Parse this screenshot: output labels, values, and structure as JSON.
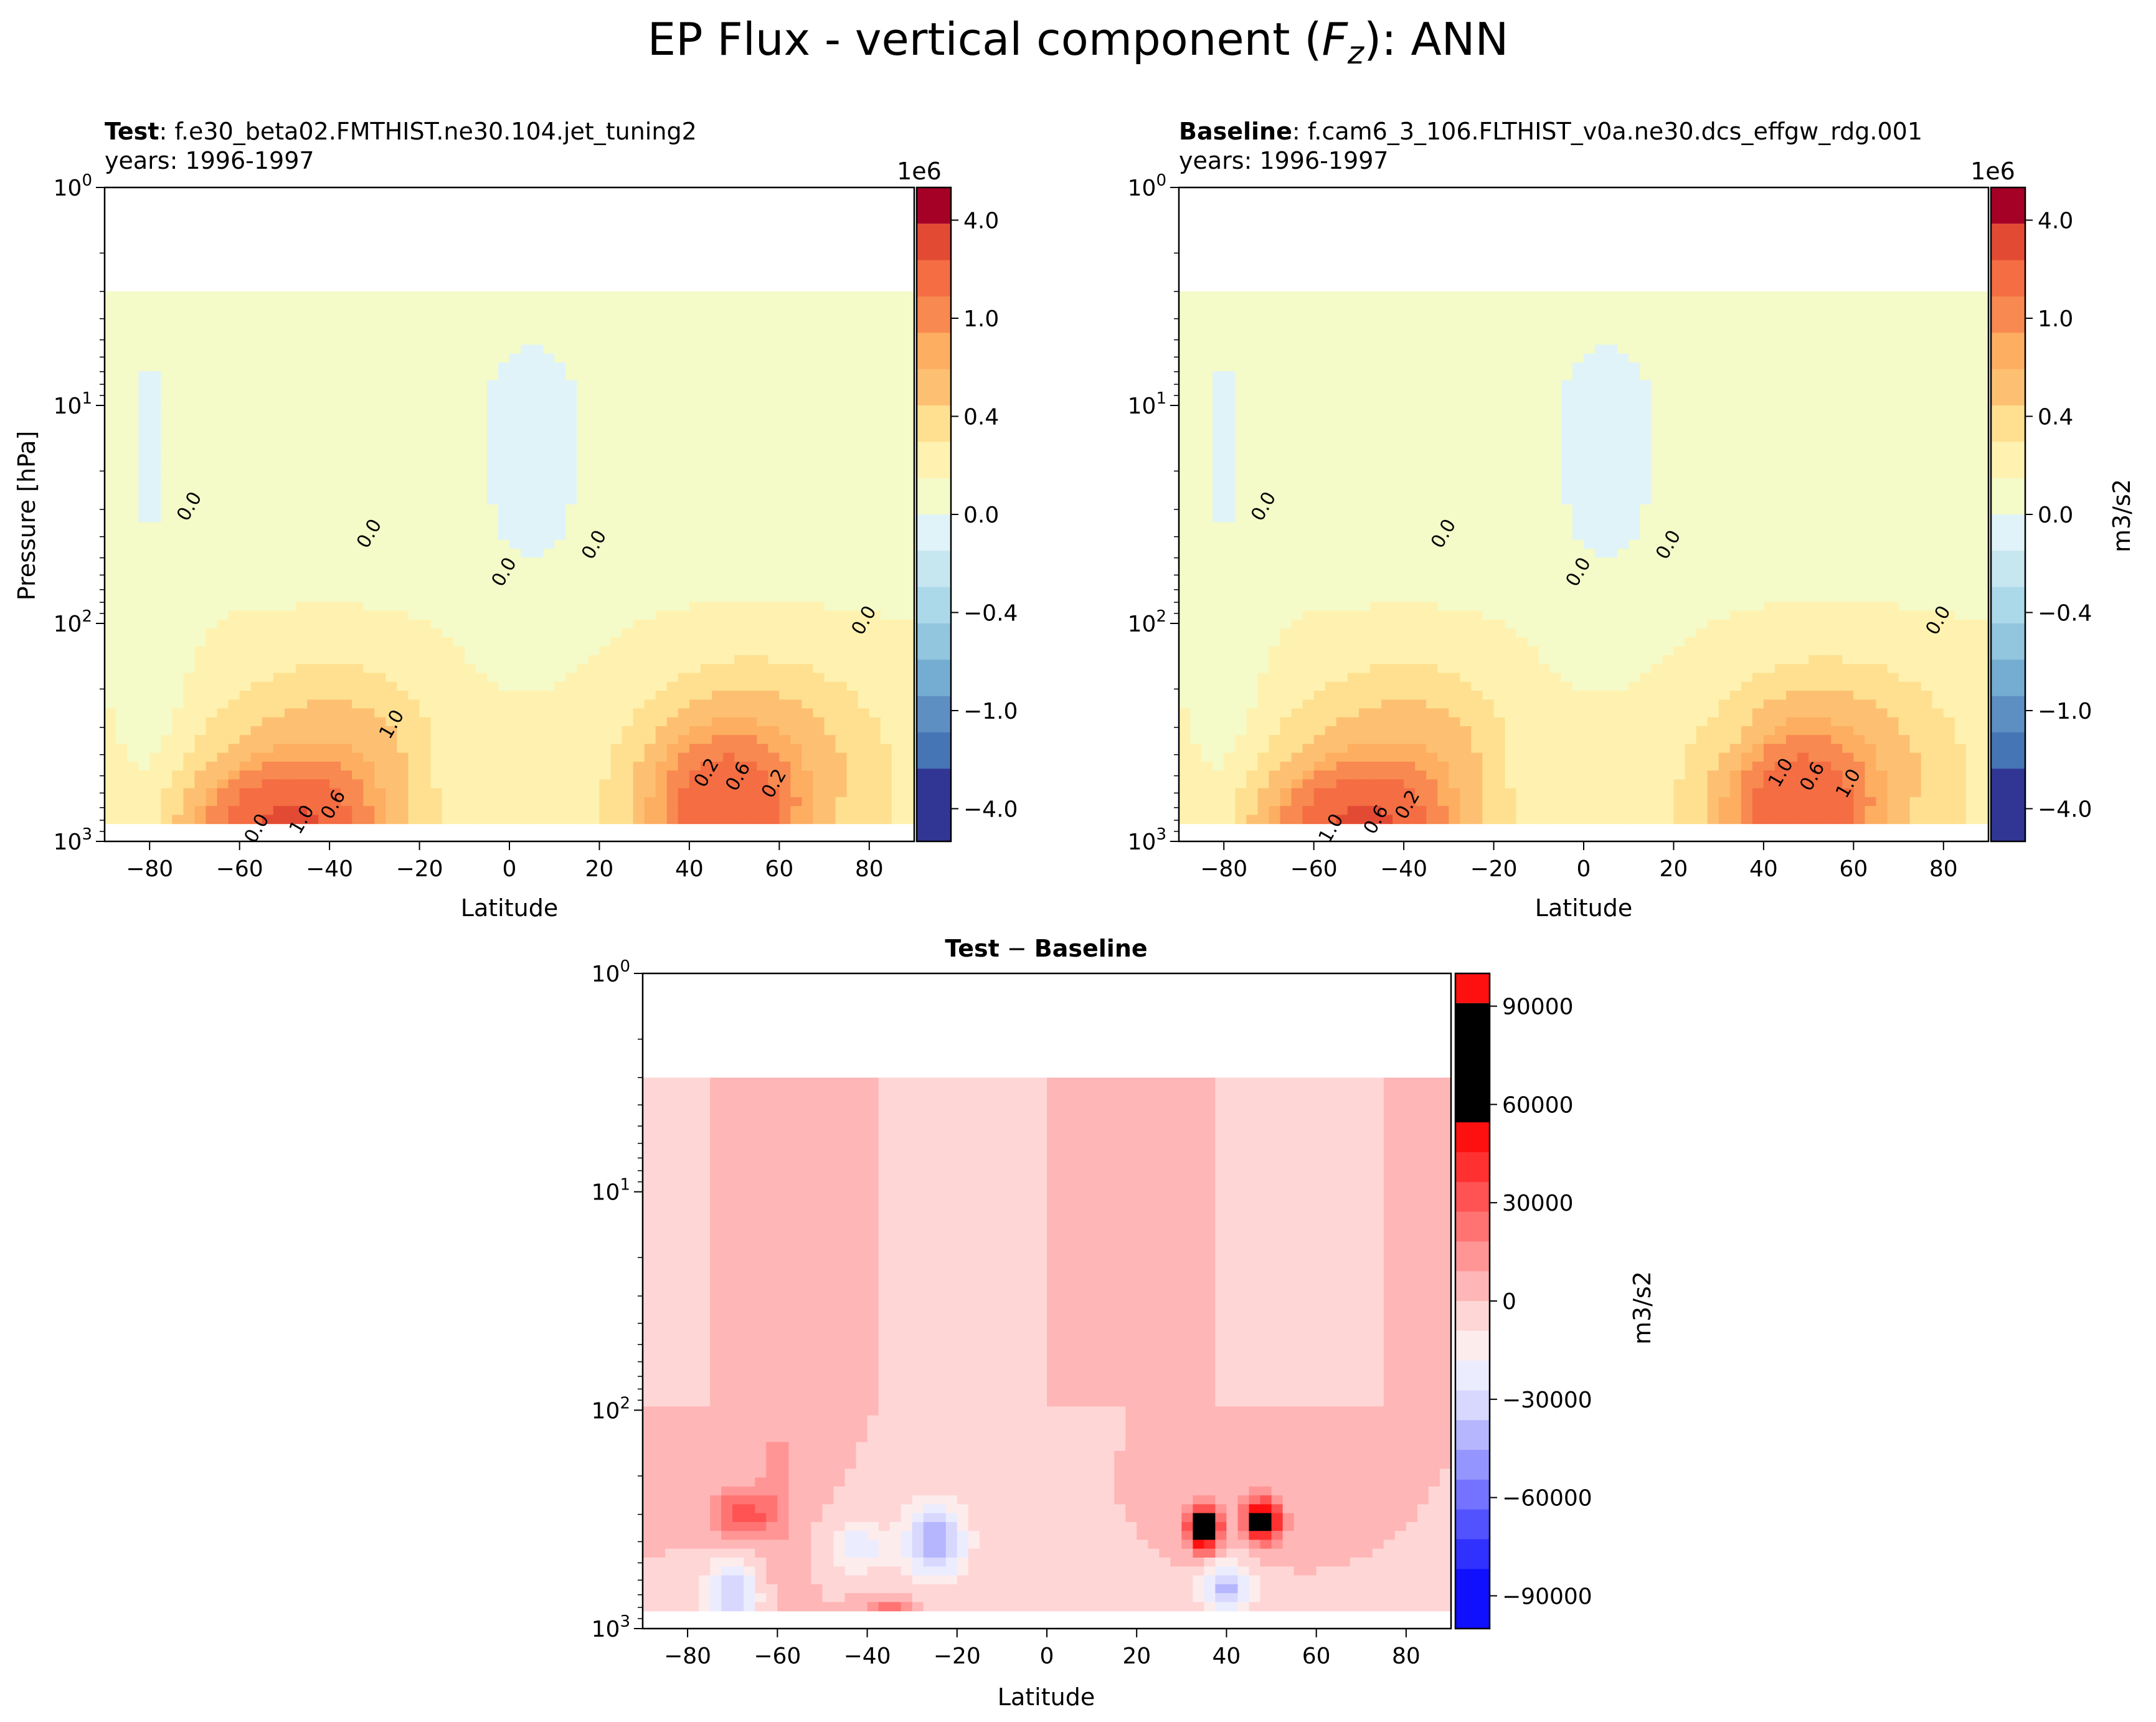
{
  "figure": {
    "title": "EP Flux - vertical component (F_z): ANN",
    "title_prefix": "EP Flux - vertical component (",
    "title_var": "F",
    "title_sub": "z",
    "title_suffix": "): ANN"
  },
  "colors": {
    "rdylbu": [
      "#313695",
      "#4575b4",
      "#5d8fc2",
      "#74add1",
      "#92c5de",
      "#abd9e9",
      "#c6e6f0",
      "#e0f3f8",
      "#f4fac8",
      "#fff2b0",
      "#fee090",
      "#fdc072",
      "#fdae61",
      "#f88950",
      "#f46d43",
      "#e34a33",
      "#d73027",
      "#b81529",
      "#a50026"
    ],
    "bwr": [
      "#1010ff",
      "#3030ff",
      "#5252ff",
      "#7373ff",
      "#9595ff",
      "#b6b6ff",
      "#d8d8ff",
      "#ececff",
      "#fdecec",
      "#ffd6d6",
      "#ffb6b6",
      "#ff9595",
      "#ff7373",
      "#ff5252",
      "#ff3030",
      "#ff1010"
    ],
    "missing": "#ffffff"
  },
  "chart_data": [
    {
      "type": "heatmap",
      "id": "test",
      "title_bold": "Test",
      "title_rest": ": f.e30_beta02.FMTHIST.ne30.104.jet_tuning2",
      "subtitle": "years: 1996-1997",
      "xlabel": "Latitude",
      "ylabel": "Pressure [hPa]",
      "x_ticks": [
        "−80",
        "−60",
        "−40",
        "−20",
        "0",
        "20",
        "40",
        "60",
        "80"
      ],
      "y_ticks": [
        "10^0",
        "10^1",
        "10^2",
        "10^3"
      ],
      "xlim": [
        -90,
        90
      ],
      "ylim_hpa": [
        1000,
        1
      ],
      "y_scale": "log",
      "colorbar": {
        "label": "",
        "offset_text": "1e6",
        "ticks": [
          "4.0",
          "1.0",
          "0.4",
          "0.0",
          "−0.4",
          "−1.0",
          "−4.0"
        ],
        "levels": [
          -4.0,
          -2.0,
          -1.0,
          -0.6,
          -0.4,
          -0.2,
          -0.1,
          -0.05,
          0,
          0.05,
          0.1,
          0.2,
          0.4,
          0.6,
          1.0,
          2.0,
          4.0
        ]
      },
      "contour_labels": [
        "0.0",
        "0.0",
        "0.0",
        "0.0",
        "0.0",
        "0.0",
        "1.0",
        "0.6",
        "0.2",
        "0.6",
        "0.2",
        "1.0"
      ],
      "features": [
        {
          "name": "SH midlatitude upward flux maximum",
          "lat": -50,
          "p_hpa": 900,
          "value": 2.0
        },
        {
          "name": "NH midlatitude upward flux maximum",
          "lat": 48,
          "p_hpa": 700,
          "value": 1.5
        },
        {
          "name": "tropical near-zero region",
          "lat": 0,
          "p_hpa": 50,
          "value": 0.0
        }
      ]
    },
    {
      "type": "heatmap",
      "id": "baseline",
      "title_bold": "Baseline",
      "title_rest": ": f.cam6_3_106.FLTHIST_v0a.ne30.dcs_effgw_rdg.001",
      "subtitle": "years: 1996-1997",
      "xlabel": "Latitude",
      "ylabel": "",
      "x_ticks": [
        "−80",
        "−60",
        "−40",
        "−20",
        "0",
        "20",
        "40",
        "60",
        "80"
      ],
      "y_ticks": [
        "10^0",
        "10^1",
        "10^2",
        "10^3"
      ],
      "xlim": [
        -90,
        90
      ],
      "ylim_hpa": [
        1000,
        1
      ],
      "y_scale": "log",
      "colorbar": {
        "label": "m3/s2",
        "offset_text": "1e6",
        "ticks": [
          "4.0",
          "1.0",
          "0.4",
          "0.0",
          "−0.4",
          "−1.0",
          "−4.0"
        ],
        "levels": [
          -4.0,
          -2.0,
          -1.0,
          -0.6,
          -0.4,
          -0.2,
          -0.1,
          -0.05,
          0,
          0.05,
          0.1,
          0.2,
          0.4,
          0.6,
          1.0,
          2.0,
          4.0
        ]
      },
      "contour_labels": [
        "0.0",
        "0.0",
        "0.0",
        "0.0",
        "0.0",
        "1.0",
        "0.6",
        "0.2",
        "1.0",
        "0.6",
        "1.0"
      ],
      "features": [
        {
          "name": "SH midlatitude upward flux maximum",
          "lat": -50,
          "p_hpa": 900,
          "value": 2.0
        },
        {
          "name": "NH midlatitude upward flux maximum",
          "lat": 48,
          "p_hpa": 700,
          "value": 1.5
        },
        {
          "name": "tropical near-zero region",
          "lat": 0,
          "p_hpa": 30,
          "value": 0.0
        }
      ]
    },
    {
      "type": "heatmap",
      "id": "diff",
      "title_bold": "Test",
      "title_minus": " − ",
      "title_bold2": "Baseline",
      "xlabel": "Latitude",
      "ylabel": "",
      "x_ticks": [
        "−80",
        "−60",
        "−40",
        "−20",
        "0",
        "20",
        "40",
        "60",
        "80"
      ],
      "y_ticks": [
        "10^0",
        "10^1",
        "10^2",
        "10^3"
      ],
      "xlim": [
        -90,
        90
      ],
      "ylim_hpa": [
        1000,
        1
      ],
      "y_scale": "log",
      "colorbar": {
        "label": "m3/s2",
        "offset_text": "",
        "ticks": [
          "90000",
          "60000",
          "30000",
          "0",
          "−30000",
          "−60000",
          "−90000"
        ],
        "levels": [
          -100000,
          -90000,
          -80000,
          -70000,
          -60000,
          -50000,
          -40000,
          -30000,
          -20000,
          -10000,
          0,
          10000,
          20000,
          30000,
          40000,
          50000,
          60000,
          70000,
          80000,
          90000,
          100000
        ]
      },
      "features": [
        {
          "name": "positive difference near 35N",
          "lat": 35,
          "p_hpa": 350,
          "value": 90000
        },
        {
          "name": "positive difference near 48N",
          "lat": 48,
          "p_hpa": 320,
          "value": 80000
        },
        {
          "name": "negative difference near 70S",
          "lat": -70,
          "p_hpa": 700,
          "value": -40000
        },
        {
          "name": "negative difference near 25S",
          "lat": -25,
          "p_hpa": 400,
          "value": -50000
        }
      ]
    }
  ]
}
